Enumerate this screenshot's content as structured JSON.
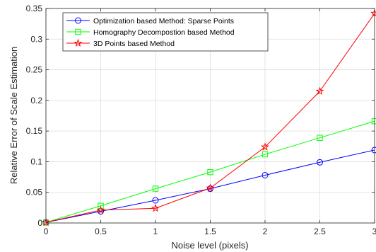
{
  "chart_data": {
    "type": "line",
    "xlabel": "Noise level (pixels)",
    "ylabel": "Relative Error of Scale Estimation",
    "xlim": [
      0,
      3
    ],
    "ylim": [
      0,
      0.35
    ],
    "grid": true,
    "legend_position": "top-left",
    "x_ticks": [
      0,
      0.5,
      1,
      1.5,
      2,
      2.5,
      3
    ],
    "x_tick_labels": [
      "0",
      "0.5",
      "1",
      "1.5",
      "2",
      "2.5",
      "3"
    ],
    "y_ticks": [
      0,
      0.05,
      0.1,
      0.15,
      0.2,
      0.25,
      0.3,
      0.35
    ],
    "y_tick_labels": [
      "0",
      "0.05",
      "0.1",
      "0.15",
      "0.2",
      "0.25",
      "0.3",
      "0.35"
    ],
    "x": [
      0,
      0.5,
      1,
      1.5,
      2,
      2.5,
      3
    ],
    "series": [
      {
        "name": "Optimization based Method: Sparse Points",
        "color": "#0000ff",
        "marker": "circle",
        "values": [
          0.001,
          0.019,
          0.037,
          0.056,
          0.078,
          0.099,
          0.119
        ]
      },
      {
        "name": "Homography Decompostion based Method",
        "color": "#00ff00",
        "marker": "square",
        "values": [
          0.001,
          0.028,
          0.056,
          0.083,
          0.112,
          0.139,
          0.166
        ]
      },
      {
        "name": "3D Points based Method",
        "color": "#ff0000",
        "marker": "star",
        "values": [
          0.001,
          0.021,
          0.024,
          0.057,
          0.124,
          0.215,
          0.342
        ]
      }
    ]
  }
}
